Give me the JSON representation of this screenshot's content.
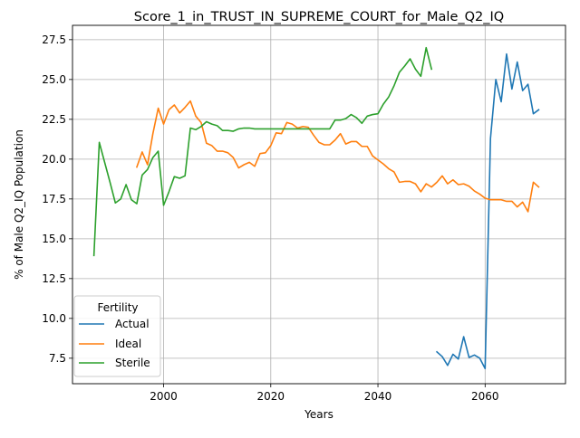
{
  "chart_data": {
    "type": "line",
    "title": "Score_1_in_TRUST_IN_SUPREME_COURT_for_Male_Q2_IQ",
    "xlabel": "Years",
    "ylabel": "% of Male Q2_IQ Population",
    "xlim": [
      1983,
      2075
    ],
    "ylim": [
      5.9,
      28.4
    ],
    "xticks": [
      2000,
      2020,
      2040,
      2060
    ],
    "yticks": [
      7.5,
      10.0,
      12.5,
      15.0,
      17.5,
      20.0,
      22.5,
      25.0,
      27.5
    ],
    "xtick_labels": [
      "2000",
      "2020",
      "2040",
      "2060"
    ],
    "ytick_labels": [
      "7.5",
      "10.0",
      "12.5",
      "15.0",
      "17.5",
      "20.0",
      "22.5",
      "25.0",
      "27.5"
    ],
    "grid": true,
    "legend": {
      "title": "Fertility",
      "position": "lower-left"
    },
    "series": [
      {
        "name": "Actual",
        "color": "#1f77b4",
        "x": [
          2051,
          2052,
          2053,
          2054,
          2055,
          2056,
          2057,
          2058,
          2059,
          2060,
          2061,
          2062,
          2063,
          2064,
          2065,
          2066,
          2067,
          2068,
          2069,
          2070
        ],
        "values": [
          7.9,
          7.6,
          7.05,
          7.75,
          7.45,
          8.85,
          7.55,
          7.7,
          7.5,
          6.85,
          21.3,
          25.0,
          23.6,
          26.6,
          24.4,
          26.1,
          24.3,
          24.7,
          22.85,
          23.1
        ]
      },
      {
        "name": "Ideal",
        "color": "#ff7f0e",
        "x": [
          1995,
          1996,
          1997,
          1998,
          1999,
          2000,
          2001,
          2002,
          2003,
          2004,
          2005,
          2006,
          2007,
          2008,
          2009,
          2010,
          2011,
          2012,
          2013,
          2014,
          2015,
          2016,
          2017,
          2018,
          2019,
          2020,
          2021,
          2022,
          2023,
          2024,
          2025,
          2026,
          2027,
          2028,
          2029,
          2030,
          2031,
          2032,
          2033,
          2034,
          2035,
          2036,
          2037,
          2038,
          2039,
          2040,
          2041,
          2042,
          2043,
          2044,
          2045,
          2046,
          2047,
          2048,
          2049,
          2050,
          2051,
          2052,
          2053,
          2054,
          2055,
          2056,
          2057,
          2058,
          2059,
          2060,
          2061,
          2062,
          2063,
          2064,
          2065,
          2066,
          2067,
          2068,
          2069,
          2070
        ],
        "values": [
          19.5,
          20.45,
          19.65,
          21.6,
          23.2,
          22.2,
          23.1,
          23.4,
          22.9,
          23.25,
          23.65,
          22.7,
          22.3,
          21.0,
          20.85,
          20.5,
          20.5,
          20.4,
          20.1,
          19.45,
          19.65,
          19.8,
          19.55,
          20.35,
          20.4,
          20.85,
          21.65,
          21.6,
          22.3,
          22.2,
          21.95,
          22.05,
          22.0,
          21.5,
          21.05,
          20.9,
          20.9,
          21.2,
          21.6,
          20.95,
          21.1,
          21.1,
          20.8,
          20.8,
          20.2,
          19.95,
          19.7,
          19.4,
          19.2,
          18.55,
          18.6,
          18.6,
          18.45,
          17.95,
          18.45,
          18.25,
          18.55,
          18.95,
          18.45,
          18.7,
          18.4,
          18.45,
          18.3,
          18.0,
          17.8,
          17.55,
          17.45,
          17.45,
          17.45,
          17.35,
          17.35,
          17.0,
          17.3,
          16.7,
          18.55,
          18.25
        ]
      },
      {
        "name": "Sterile",
        "color": "#2ca02c",
        "x": [
          1987,
          1988,
          1989,
          1990,
          1991,
          1992,
          1993,
          1994,
          1995,
          1996,
          1997,
          1998,
          1999,
          2000,
          2001,
          2002,
          2003,
          2004,
          2005,
          2006,
          2007,
          2008,
          2009,
          2010,
          2011,
          2012,
          2013,
          2014,
          2015,
          2016,
          2017,
          2018,
          2019,
          2020,
          2021,
          2022,
          2023,
          2024,
          2025,
          2026,
          2027,
          2028,
          2029,
          2030,
          2031,
          2032,
          2033,
          2034,
          2035,
          2036,
          2037,
          2038,
          2039,
          2040,
          2041,
          2042,
          2043,
          2044,
          2045,
          2046,
          2047,
          2048,
          2049,
          2050
        ],
        "values": [
          13.95,
          21.05,
          19.8,
          18.55,
          17.25,
          17.5,
          18.4,
          17.45,
          17.2,
          19.0,
          19.35,
          20.1,
          20.5,
          17.1,
          17.95,
          18.9,
          18.8,
          18.95,
          21.95,
          21.85,
          22.05,
          22.35,
          22.2,
          22.1,
          21.8,
          21.8,
          21.75,
          21.9,
          21.95,
          21.95,
          21.9,
          21.9,
          21.9,
          21.9,
          21.9,
          21.9,
          21.9,
          21.9,
          21.9,
          21.9,
          21.9,
          21.9,
          21.9,
          21.9,
          21.9,
          22.45,
          22.45,
          22.55,
          22.8,
          22.6,
          22.25,
          22.7,
          22.8,
          22.85,
          23.45,
          23.9,
          24.6,
          25.45,
          25.85,
          26.3,
          25.65,
          25.2,
          27.0,
          25.65
        ]
      }
    ]
  }
}
